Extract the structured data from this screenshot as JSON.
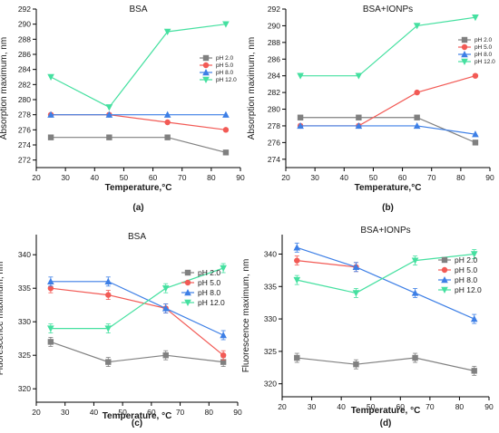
{
  "chart_data": [
    {
      "type": "line",
      "panel_label": "(a)",
      "title": "BSA",
      "xlabel": "Temperature,°C",
      "ylabel": "Absorption maximum, nm",
      "xlim": [
        20,
        90
      ],
      "ylim": [
        271,
        292
      ],
      "xticks": [
        20,
        30,
        40,
        50,
        60,
        70,
        80,
        90
      ],
      "yticks": [
        272,
        274,
        276,
        278,
        280,
        282,
        284,
        286,
        288,
        290,
        292
      ],
      "x": [
        25,
        45,
        65,
        85
      ],
      "legend_position": "right",
      "error_bars": false,
      "series": [
        {
          "name": "pH 2.0",
          "values": [
            275,
            275,
            275,
            273
          ]
        },
        {
          "name": "pH 5.0",
          "values": [
            278,
            278,
            277,
            276
          ]
        },
        {
          "name": "pH 8.0",
          "values": [
            278,
            278,
            278,
            278
          ]
        },
        {
          "name": "pH 12.0",
          "values": [
            283,
            279,
            289,
            290
          ]
        }
      ]
    },
    {
      "type": "line",
      "panel_label": "(b)",
      "title": "BSA+IONPs",
      "xlabel": "Temperature,°C",
      "ylabel": "Absorption maximum, nm",
      "xlim": [
        20,
        90
      ],
      "ylim": [
        273,
        292
      ],
      "xticks": [
        20,
        30,
        40,
        50,
        60,
        70,
        80,
        90
      ],
      "yticks": [
        274,
        276,
        278,
        280,
        282,
        284,
        286,
        288,
        290,
        292
      ],
      "x": [
        25,
        45,
        65,
        85
      ],
      "legend_position": "top-right",
      "error_bars": false,
      "series": [
        {
          "name": "pH 2.0",
          "values": [
            279,
            279,
            279,
            276
          ]
        },
        {
          "name": "pH 5.0",
          "values": [
            278,
            278,
            282,
            284
          ]
        },
        {
          "name": "pH 8.0",
          "values": [
            278,
            278,
            278,
            277
          ]
        },
        {
          "name": "pH 12.0",
          "values": [
            284,
            284,
            290,
            291
          ]
        }
      ]
    },
    {
      "type": "line",
      "panel_label": "(c)",
      "title": "BSA",
      "xlabel": "Temperature, °C",
      "ylabel": "Fluorescence maximum, nm",
      "xlim": [
        20,
        90
      ],
      "ylim": [
        318,
        343
      ],
      "xticks": [
        20,
        30,
        40,
        50,
        60,
        70,
        80,
        90
      ],
      "yticks": [
        320,
        325,
        330,
        335,
        340
      ],
      "x": [
        25,
        45,
        65,
        85
      ],
      "legend_position": "right",
      "error_bars": true,
      "series": [
        {
          "name": "pH 2.0",
          "values": [
            327,
            324,
            325,
            324
          ]
        },
        {
          "name": "pH 5.0",
          "values": [
            335,
            334,
            332,
            325
          ]
        },
        {
          "name": "pH 8.0",
          "values": [
            336,
            336,
            332,
            328
          ]
        },
        {
          "name": "pH 12.0",
          "values": [
            329,
            329,
            335,
            338
          ]
        }
      ]
    },
    {
      "type": "line",
      "panel_label": "(d)",
      "title": "BSA+IONPs",
      "xlabel": "Temperature, °C",
      "ylabel": "Fluorescence maximum, nm",
      "xlim": [
        20,
        90
      ],
      "ylim": [
        318,
        343
      ],
      "xticks": [
        20,
        30,
        40,
        50,
        60,
        70,
        80,
        90
      ],
      "yticks": [
        320,
        325,
        330,
        335,
        340
      ],
      "x": [
        25,
        45,
        65,
        85
      ],
      "legend_position": "right",
      "error_bars": true,
      "series": [
        {
          "name": "pH 2.0",
          "values": [
            324,
            323,
            324,
            322
          ]
        },
        {
          "name": "pH 5.0",
          "values": [
            339,
            338,
            null,
            null
          ]
        },
        {
          "name": "pH 8.0",
          "values": [
            341,
            338,
            334,
            330
          ]
        },
        {
          "name": "pH 12.0",
          "values": [
            336,
            334,
            339,
            340
          ]
        }
      ]
    }
  ],
  "style": {
    "series_colors": [
      "#808080",
      "#f25a55",
      "#3d7fe6",
      "#45e0a0"
    ],
    "series_markers": [
      "square",
      "circle",
      "triangle-up",
      "triangle-down"
    ],
    "axis_color": "#000000",
    "text_color": "#1a1a1a"
  }
}
